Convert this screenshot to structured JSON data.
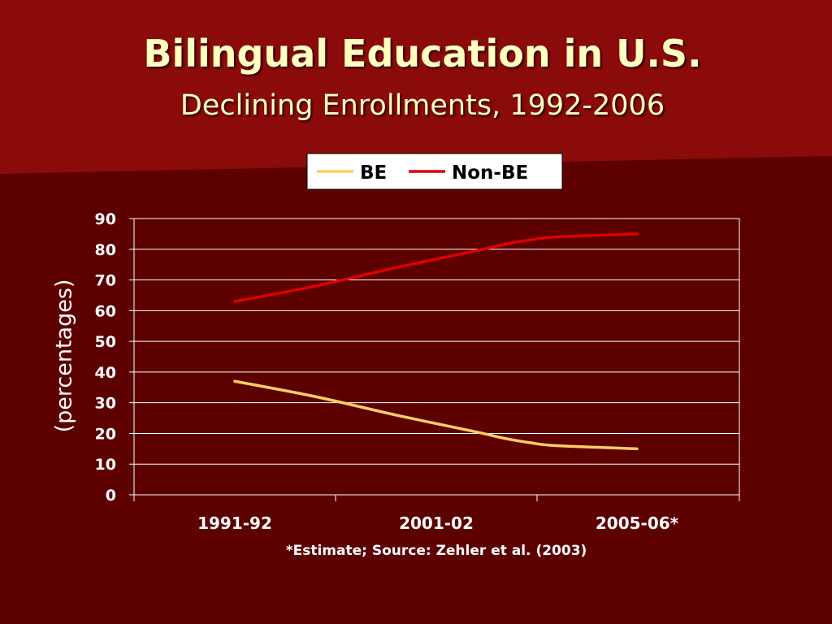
{
  "slide": {
    "title": "Bilingual Education in U.S.",
    "subtitle": "Declining Enrollments, 1992-2006",
    "footnote": "*Estimate; Source: Zehler et al. (2003)"
  },
  "colors": {
    "background": "#5c0000",
    "wedge": "#8b0a0a",
    "title_text": "#ffffc0",
    "grid": "#ffffff"
  },
  "chart_data": {
    "type": "line",
    "title": "",
    "xlabel": "",
    "ylabel": "(percentages)",
    "categories": [
      "1991-92",
      "2001-02",
      "2005-06*"
    ],
    "ylim": [
      0,
      90
    ],
    "yticks": [
      0,
      10,
      20,
      30,
      40,
      50,
      60,
      70,
      80,
      90
    ],
    "grid": true,
    "legend_position": "top-center",
    "series": [
      {
        "name": "BE",
        "color": "#ffcc66",
        "x": [
          1991,
          1994,
          1997,
          2000,
          2001,
          2002,
          2003,
          2006
        ],
        "values": [
          37,
          32,
          26,
          20.5,
          18.5,
          17,
          16,
          15
        ]
      },
      {
        "name": "Non-BE",
        "color": "#e00000",
        "x": [
          1991,
          1994,
          1997,
          2000,
          2001,
          2002,
          2003,
          2006
        ],
        "values": [
          63,
          68,
          74,
          79.5,
          81.5,
          83,
          84,
          85
        ]
      }
    ]
  }
}
